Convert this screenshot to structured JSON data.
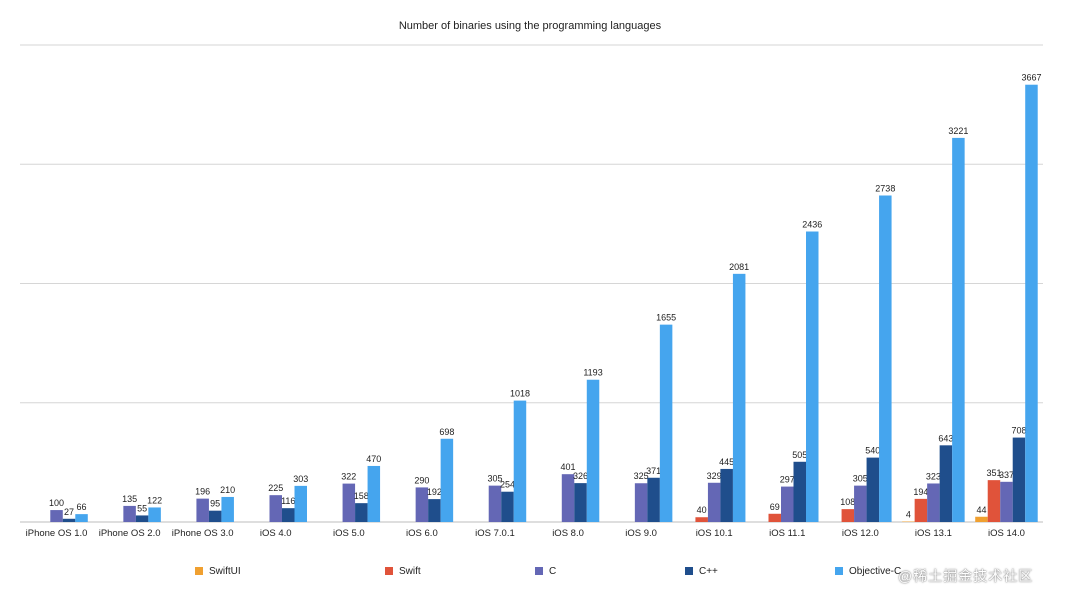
{
  "chart_data": {
    "type": "bar",
    "title": "Number of binaries using the programming languages",
    "categories": [
      "iPhone OS 1.0",
      "iPhone OS 2.0",
      "iPhone OS 3.0",
      "iOS 4.0",
      "iOS 5.0",
      "iOS 6.0",
      "iOS 7.0.1",
      "iOS 8.0",
      "iOS 9.0",
      "iOS 10.1",
      "iOS 11.1",
      "iOS 12.0",
      "iOS 13.1",
      "iOS 14.0"
    ],
    "series": [
      {
        "name": "SwiftUI",
        "color": "#f0a030",
        "values": [
          null,
          null,
          null,
          null,
          null,
          null,
          null,
          null,
          null,
          null,
          null,
          null,
          4,
          44
        ]
      },
      {
        "name": "Swift",
        "color": "#e0533a",
        "values": [
          null,
          null,
          null,
          null,
          null,
          null,
          null,
          null,
          null,
          40,
          69,
          108,
          194,
          351
        ]
      },
      {
        "name": "C",
        "color": "#6467b5",
        "values": [
          100,
          135,
          196,
          225,
          322,
          290,
          305,
          401,
          325,
          329,
          297,
          305,
          323,
          337
        ]
      },
      {
        "name": "C++",
        "color": "#1f4e8c",
        "values": [
          27,
          55,
          95,
          116,
          158,
          192,
          254,
          326,
          371,
          445,
          505,
          540,
          643,
          708
        ]
      },
      {
        "name": "Objective-C",
        "color": "#45a5ee",
        "values": [
          66,
          122,
          210,
          303,
          470,
          698,
          1018,
          1193,
          1655,
          2081,
          2436,
          2738,
          3221,
          3667
        ]
      }
    ],
    "xlabel": "",
    "ylabel": "",
    "ylim": [
      0,
      4000
    ],
    "grid": true,
    "legend_position": "bottom",
    "data_labels": true
  },
  "watermark": "@稀土掘金技术社区"
}
